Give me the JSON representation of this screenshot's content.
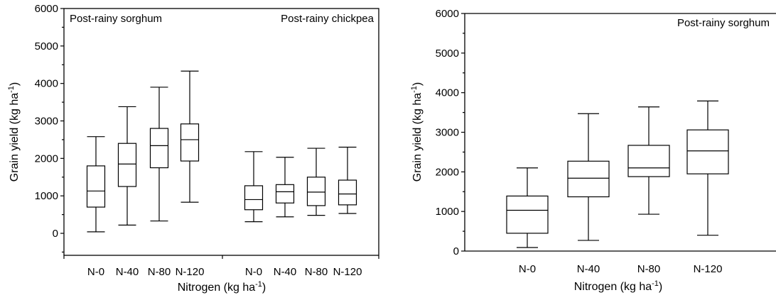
{
  "chart_data": [
    {
      "type": "box",
      "ylabel": "Grain yield (kg ha",
      "ylabel_sup": "-1",
      "ylabel_tail": ")",
      "xlabel": "Nitrogen (kg ha",
      "xlabel_sup": "-1",
      "xlabel_tail": ")",
      "ylim": [
        -600,
        6000
      ],
      "yticks": [
        "0",
        "1000",
        "2000",
        "3000",
        "4000",
        "5000",
        "6000"
      ],
      "ytick_values": [
        0,
        1000,
        2000,
        3000,
        4000,
        5000,
        6000
      ],
      "grid": false,
      "groups": [
        {
          "annotation": "Post-rainy sorghum",
          "categories": [
            "N-0",
            "N-40",
            "N-80",
            "N-120"
          ],
          "boxes": [
            {
              "min": 40,
              "q1": 700,
              "median": 1130,
              "q3": 1800,
              "max": 2580
            },
            {
              "min": 220,
              "q1": 1250,
              "median": 1850,
              "q3": 2400,
              "max": 3380
            },
            {
              "min": 330,
              "q1": 1750,
              "median": 2340,
              "q3": 2800,
              "max": 3900
            },
            {
              "min": 830,
              "q1": 1930,
              "median": 2500,
              "q3": 2920,
              "max": 4330
            }
          ]
        },
        {
          "annotation": "Post-rainy chickpea",
          "categories": [
            "N-0",
            "N-40",
            "N-80",
            "N-120"
          ],
          "boxes": [
            {
              "min": 310,
              "q1": 630,
              "median": 900,
              "q3": 1270,
              "max": 2180
            },
            {
              "min": 440,
              "q1": 810,
              "median": 1110,
              "q3": 1300,
              "max": 2030
            },
            {
              "min": 480,
              "q1": 740,
              "median": 1100,
              "q3": 1500,
              "max": 2270
            },
            {
              "min": 530,
              "q1": 760,
              "median": 1050,
              "q3": 1420,
              "max": 2300
            }
          ]
        }
      ]
    },
    {
      "type": "box",
      "annotation": "Post-rainy sorghum",
      "ylabel": "Grain yield (kg ha",
      "ylabel_sup": "-1",
      "ylabel_tail": ")",
      "xlabel": "Nitrogen (kg ha",
      "xlabel_sup": "-1",
      "xlabel_tail": ")",
      "ylim": [
        0,
        6000
      ],
      "yticks": [
        "0",
        "1000",
        "2000",
        "3000",
        "4000",
        "5000",
        "6000"
      ],
      "ytick_values": [
        0,
        1000,
        2000,
        3000,
        4000,
        5000,
        6000
      ],
      "grid": false,
      "categories": [
        "N-0",
        "N-40",
        "N-80",
        "N-120"
      ],
      "boxes": [
        {
          "min": 90,
          "q1": 450,
          "median": 1030,
          "q3": 1390,
          "max": 2100
        },
        {
          "min": 270,
          "q1": 1370,
          "median": 1840,
          "q3": 2270,
          "max": 3470
        },
        {
          "min": 930,
          "q1": 1880,
          "median": 2100,
          "q3": 2670,
          "max": 3640
        },
        {
          "min": 400,
          "q1": 1950,
          "median": 2530,
          "q3": 3060,
          "max": 3790
        }
      ]
    }
  ]
}
